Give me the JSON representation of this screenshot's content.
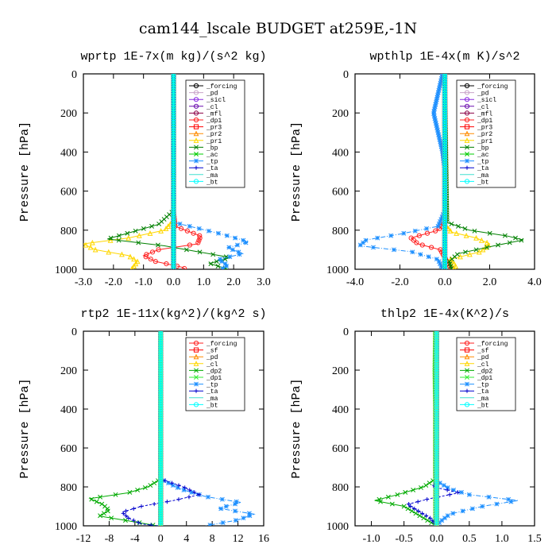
{
  "title": "cam144_lscale  BUDGET at259E,-1N",
  "chart_data": [
    {
      "type": "line",
      "title": "wprtp  1E-7x(m kg)/(s^2 kg)",
      "ylabel": "Pressure [hPa]",
      "xlabel": "",
      "xlim": [
        -3.0,
        3.0
      ],
      "ylim": [
        1000,
        0
      ],
      "xticks": [
        "-3.0",
        "-2.0",
        "-1.0",
        "0.0",
        "1.0",
        "2.0",
        "3.0"
      ],
      "yticks": [
        "0",
        "200",
        "400",
        "600",
        "800",
        "1000"
      ],
      "legend_position": "upper-right",
      "series": [
        {
          "name": "_forcing",
          "color": "#000000",
          "marker": "o",
          "p": [
            0,
            1000
          ],
          "x": [
            0,
            0
          ]
        },
        {
          "name": "_pd",
          "color": "#c8a2c8",
          "marker": "o",
          "p": [
            0,
            1000
          ],
          "x": [
            0,
            0
          ]
        },
        {
          "name": "_sicl",
          "color": "#8a2be2",
          "marker": "o",
          "p": [
            0,
            1000
          ],
          "x": [
            0,
            0
          ]
        },
        {
          "name": "_cl",
          "color": "#6a0dad",
          "marker": "o",
          "p": [
            0,
            1000
          ],
          "x": [
            0,
            0
          ]
        },
        {
          "name": "_mfl",
          "color": "#8b0045",
          "marker": "o",
          "p": [
            0,
            1000
          ],
          "x": [
            0,
            0
          ]
        },
        {
          "name": "_dp1",
          "color": "#ff2020",
          "marker": "o",
          "p": [
            0,
            700,
            780,
            830,
            870,
            900,
            930,
            960,
            990,
            1000
          ],
          "x": [
            0,
            0,
            0.05,
            0.9,
            0.8,
            -0.5,
            -1.0,
            -0.6,
            0.3,
            0.4
          ]
        },
        {
          "name": "_pr3",
          "color": "#ff0000",
          "marker": "s",
          "p": [
            0,
            1000
          ],
          "x": [
            0,
            0
          ]
        },
        {
          "name": "_pr2",
          "color": "#ff8c00",
          "marker": "^",
          "p": [
            0,
            1000
          ],
          "x": [
            0,
            0
          ]
        },
        {
          "name": "_pr1",
          "color": "#ffd700",
          "marker": "^",
          "p": [
            0,
            750,
            800,
            840,
            870,
            900,
            930,
            960,
            980,
            1000
          ],
          "x": [
            0,
            0,
            -0.3,
            -1.5,
            -3.0,
            -2.6,
            -1.5,
            -1.2,
            -1.3,
            -1.4
          ]
        },
        {
          "name": "_bp",
          "color": "#008000",
          "marker": "x",
          "p": [
            0,
            700,
            770,
            810,
            845,
            880,
            910,
            940,
            970,
            1000
          ],
          "x": [
            0,
            0,
            -0.5,
            -1.4,
            -2.2,
            -0.3,
            0.8,
            1.9,
            1.2,
            1.8
          ]
        },
        {
          "name": "_ac",
          "color": "#00cc00",
          "marker": "x",
          "p": [
            0,
            1000
          ],
          "x": [
            0,
            0
          ]
        },
        {
          "name": "_tp",
          "color": "#1e90ff",
          "marker": "*",
          "p": [
            0,
            760,
            820,
            860,
            890,
            920,
            950,
            980,
            1000
          ],
          "x": [
            0,
            0,
            1.6,
            2.5,
            1.8,
            2.3,
            1.5,
            1.8,
            1.6
          ]
        },
        {
          "name": "_ta",
          "color": "#0000cd",
          "marker": "+",
          "p": [
            0,
            1000
          ],
          "x": [
            0,
            0
          ]
        },
        {
          "name": "_ma",
          "color": "#40e0d0",
          "marker": "-",
          "p": [
            0,
            1000
          ],
          "x": [
            0,
            0
          ]
        },
        {
          "name": "_bt",
          "color": "#00ffff",
          "marker": "o",
          "p": [
            0,
            1000
          ],
          "x": [
            0,
            0
          ]
        }
      ]
    },
    {
      "type": "line",
      "title": "wpthlp  1E-4x(m K)/s^2",
      "ylabel": "Pressure [hPa]",
      "xlabel": "",
      "xlim": [
        -4.0,
        4.0
      ],
      "ylim": [
        1000,
        0
      ],
      "xticks": [
        "-4.0",
        "-2.0",
        "0.0",
        "2.0",
        "4.0"
      ],
      "yticks": [
        "0",
        "200",
        "400",
        "600",
        "800",
        "1000"
      ],
      "legend_position": "upper-right",
      "series": [
        {
          "name": "_forcing",
          "color": "#000000",
          "marker": "o",
          "p": [
            0,
            1000
          ],
          "x": [
            0,
            0
          ]
        },
        {
          "name": "_pd",
          "color": "#c8a2c8",
          "marker": "o",
          "p": [
            0,
            1000
          ],
          "x": [
            0,
            0
          ]
        },
        {
          "name": "_sicl",
          "color": "#8a2be2",
          "marker": "o",
          "p": [
            0,
            1000
          ],
          "x": [
            0,
            0
          ]
        },
        {
          "name": "_cl",
          "color": "#6a0dad",
          "marker": "o",
          "p": [
            0,
            1000
          ],
          "x": [
            0,
            0
          ]
        },
        {
          "name": "_mfl",
          "color": "#8b0045",
          "marker": "o",
          "p": [
            0,
            1000
          ],
          "x": [
            0,
            0
          ]
        },
        {
          "name": "_dp1",
          "color": "#ff2020",
          "marker": "o",
          "p": [
            0,
            760,
            800,
            840,
            870,
            900,
            940,
            980,
            1000
          ],
          "x": [
            0,
            0,
            -0.3,
            -1.5,
            -1.2,
            -0.2,
            0.0,
            0.2,
            0.3
          ]
        },
        {
          "name": "_pr3",
          "color": "#ff0000",
          "marker": "s",
          "p": [
            0,
            1000
          ],
          "x": [
            0,
            0
          ]
        },
        {
          "name": "_pr2",
          "color": "#ff8c00",
          "marker": "^",
          "p": [
            0,
            1000
          ],
          "x": [
            0,
            0
          ]
        },
        {
          "name": "_pr1",
          "color": "#ffd700",
          "marker": "^",
          "p": [
            0,
            770,
            810,
            840,
            870,
            910,
            950,
            980,
            1000
          ],
          "x": [
            0,
            0,
            0.3,
            1.4,
            2.0,
            1.6,
            0.2,
            0.5,
            0.4
          ]
        },
        {
          "name": "_bp",
          "color": "#008000",
          "marker": "x",
          "p": [
            0,
            760,
            800,
            830,
            850,
            880,
            920,
            960,
            1000
          ],
          "x": [
            0,
            0.1,
            1.1,
            2.8,
            3.5,
            2.2,
            0.6,
            0.2,
            0.3
          ]
        },
        {
          "name": "_ac",
          "color": "#00cc00",
          "marker": "x",
          "p": [
            0,
            1000
          ],
          "x": [
            0,
            0
          ]
        },
        {
          "name": "_tp",
          "color": "#1e90ff",
          "marker": "*",
          "p": [
            0,
            100,
            200,
            300,
            400,
            500,
            600,
            700,
            780,
            820,
            850,
            880,
            910,
            950,
            1000
          ],
          "x": [
            -0.1,
            -0.3,
            -0.5,
            -0.3,
            -0.1,
            0.0,
            0.0,
            0.0,
            -0.3,
            -2.0,
            -3.5,
            -3.8,
            -1.5,
            -0.3,
            -0.1
          ]
        },
        {
          "name": "_ta",
          "color": "#0000cd",
          "marker": "+",
          "p": [
            0,
            1000
          ],
          "x": [
            0,
            0
          ]
        },
        {
          "name": "_ma",
          "color": "#40e0d0",
          "marker": "-",
          "p": [
            0,
            1000
          ],
          "x": [
            0,
            0
          ]
        },
        {
          "name": "_bt",
          "color": "#00ffff",
          "marker": "o",
          "p": [
            0,
            1000
          ],
          "x": [
            0,
            0
          ]
        }
      ]
    },
    {
      "type": "line",
      "title": "rtp2  1E-11x(kg^2)/(kg^2 s)",
      "ylabel": "Pressure [hPa]",
      "xlabel": "",
      "xlim": [
        -12,
        16
      ],
      "ylim": [
        1000,
        0
      ],
      "xticks": [
        "-12",
        "-8",
        "-4",
        "0",
        "4",
        "8",
        "12",
        "16"
      ],
      "yticks": [
        "0",
        "200",
        "400",
        "600",
        "800",
        "1000"
      ],
      "legend_position": "upper-right",
      "series": [
        {
          "name": "_forcing",
          "color": "#ff2020",
          "marker": "o",
          "p": [
            0,
            1000
          ],
          "x": [
            0,
            0
          ]
        },
        {
          "name": "_sf",
          "color": "#ff0000",
          "marker": "s",
          "p": [
            0,
            1000
          ],
          "x": [
            0,
            0
          ]
        },
        {
          "name": "_pd",
          "color": "#ff8c00",
          "marker": "^",
          "p": [
            0,
            1000
          ],
          "x": [
            0,
            0
          ]
        },
        {
          "name": "_cl",
          "color": "#ffd700",
          "marker": "^",
          "p": [
            0,
            1000
          ],
          "x": [
            0,
            0
          ]
        },
        {
          "name": "_dp2",
          "color": "#00aa00",
          "marker": "x",
          "p": [
            0,
            760,
            800,
            830,
            860,
            890,
            920,
            950,
            980,
            1000
          ],
          "x": [
            0,
            0,
            -2.0,
            -5.0,
            -11.0,
            -9.0,
            -8.0,
            -9.5,
            -4.0,
            -0.5
          ]
        },
        {
          "name": "_dp1",
          "color": "#33ee33",
          "marker": "x",
          "p": [
            0,
            1000
          ],
          "x": [
            0,
            0
          ]
        },
        {
          "name": "_tp",
          "color": "#1e90ff",
          "marker": "*",
          "p": [
            0,
            760,
            810,
            850,
            880,
            910,
            940,
            970,
            1000
          ],
          "x": [
            0,
            0,
            3.0,
            7.0,
            12.5,
            9.0,
            14.5,
            12.0,
            7.0
          ]
        },
        {
          "name": "_ta",
          "color": "#0000cd",
          "marker": "+",
          "p": [
            0,
            760,
            800,
            840,
            870,
            900,
            930,
            960,
            990,
            1000
          ],
          "x": [
            0,
            0,
            3.5,
            6.0,
            2.0,
            -3.0,
            -6.0,
            -5.0,
            -3.0,
            -0.5
          ]
        },
        {
          "name": "_ma",
          "color": "#40e0d0",
          "marker": "-",
          "p": [
            0,
            1000
          ],
          "x": [
            0,
            0
          ]
        },
        {
          "name": "_bt",
          "color": "#00ffff",
          "marker": "o",
          "p": [
            0,
            1000
          ],
          "x": [
            0,
            0
          ]
        }
      ]
    },
    {
      "type": "line",
      "title": "thlp2  1E-4x(K^2)/s",
      "ylabel": "Pressure [hPa]",
      "xlabel": "",
      "xlim": [
        -1.25,
        1.5
      ],
      "ylim": [
        1000,
        0
      ],
      "xticks": [
        "-1.0",
        "-0.5",
        "0.0",
        "0.5",
        "1.0",
        "1.5"
      ],
      "xtick_values": [
        -1.0,
        -0.5,
        0.0,
        0.5,
        1.0,
        1.5
      ],
      "yticks": [
        "0",
        "200",
        "400",
        "600",
        "800",
        "1000"
      ],
      "legend_position": "upper-right",
      "series": [
        {
          "name": "_forcing",
          "color": "#ff2020",
          "marker": "o",
          "p": [
            0,
            1000
          ],
          "x": [
            0,
            0
          ]
        },
        {
          "name": "_sf",
          "color": "#ff0000",
          "marker": "s",
          "p": [
            0,
            1000
          ],
          "x": [
            0,
            0
          ]
        },
        {
          "name": "_pd",
          "color": "#ff8c00",
          "marker": "^",
          "p": [
            0,
            1000
          ],
          "x": [
            0,
            0
          ]
        },
        {
          "name": "_cl",
          "color": "#ffd700",
          "marker": "^",
          "p": [
            0,
            1000
          ],
          "x": [
            0,
            0
          ]
        },
        {
          "name": "_dp2",
          "color": "#00aa00",
          "marker": "x",
          "p": [
            0,
            760,
            800,
            840,
            870,
            900,
            940,
            980,
            1000
          ],
          "x": [
            -0.02,
            -0.02,
            -0.2,
            -0.6,
            -0.95,
            -0.5,
            -0.3,
            -0.1,
            0.0
          ]
        },
        {
          "name": "_dp1",
          "color": "#33ee33",
          "marker": "x",
          "p": [
            0,
            200,
            400,
            600,
            1000
          ],
          "x": [
            -0.02,
            -0.03,
            -0.02,
            -0.02,
            -0.02
          ]
        },
        {
          "name": "_tp",
          "color": "#1e90ff",
          "marker": "*",
          "p": [
            0,
            770,
            810,
            840,
            870,
            900,
            940,
            980,
            1000
          ],
          "x": [
            0,
            0,
            0.2,
            0.5,
            1.25,
            0.7,
            0.2,
            0.05,
            0.0
          ]
        },
        {
          "name": "_ta",
          "color": "#0000cd",
          "marker": "+",
          "p": [
            0,
            770,
            800,
            830,
            860,
            890,
            920,
            960,
            1000
          ],
          "x": [
            0,
            0,
            -0.05,
            0.35,
            -0.1,
            -0.45,
            -0.3,
            -0.1,
            0.0
          ]
        },
        {
          "name": "_ma",
          "color": "#40e0d0",
          "marker": "-",
          "p": [
            0,
            1000
          ],
          "x": [
            0,
            0
          ]
        },
        {
          "name": "_bt",
          "color": "#00ffff",
          "marker": "o",
          "p": [
            0,
            1000
          ],
          "x": [
            0,
            0
          ]
        }
      ]
    }
  ]
}
